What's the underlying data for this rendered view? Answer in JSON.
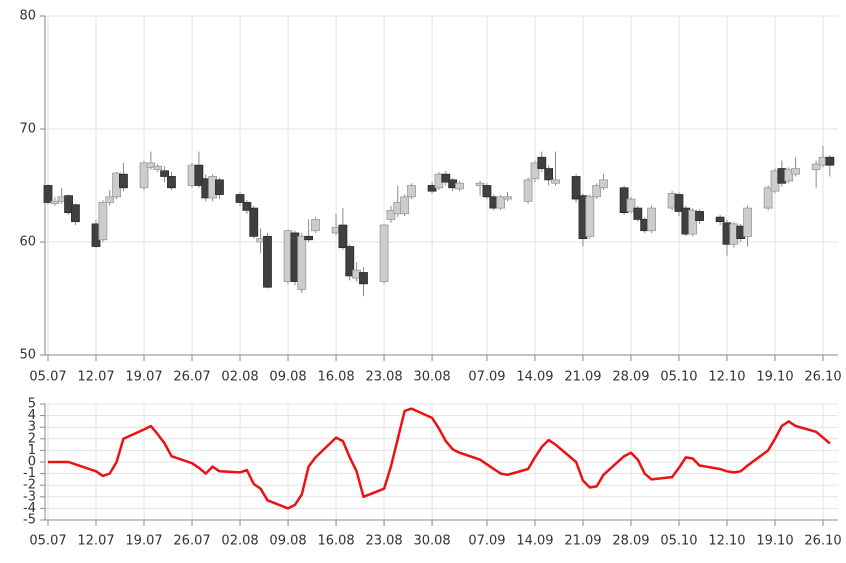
{
  "chart_data": [
    {
      "type": "candlestick",
      "x": [
        "05.07",
        "06.07",
        "07.07",
        "08.07",
        "09.07",
        "12.07",
        "13.07",
        "14.07",
        "15.07",
        "16.07",
        "19.07",
        "20.07",
        "21.07",
        "22.07",
        "23.07",
        "26.07",
        "27.07",
        "28.07",
        "29.07",
        "30.07",
        "02.08",
        "03.08",
        "04.08",
        "05.08",
        "06.08",
        "09.08",
        "10.08",
        "11.08",
        "12.08",
        "13.08",
        "16.08",
        "17.08",
        "18.08",
        "19.08",
        "20.08",
        "23.08",
        "24.08",
        "25.08",
        "26.08",
        "27.08",
        "30.08",
        "31.08",
        "01.09",
        "02.09",
        "03.09",
        "06.09",
        "07.09",
        "08.09",
        "09.09",
        "10.09",
        "13.09",
        "14.09",
        "15.09",
        "16.09",
        "17.09",
        "20.09",
        "21.09",
        "22.09",
        "23.09",
        "24.09",
        "27.09",
        "28.09",
        "29.09",
        "30.09",
        "01.10",
        "04.10",
        "05.10",
        "06.10",
        "07.10",
        "08.10",
        "11.10",
        "12.10",
        "13.10",
        "14.10",
        "15.10",
        "18.10",
        "19.10",
        "20.10",
        "21.10",
        "22.10",
        "25.10",
        "26.10",
        "27.10"
      ],
      "open": [
        65,
        63.4,
        63.6,
        64.1,
        63.3,
        61.6,
        60.2,
        63.5,
        64,
        66,
        64.8,
        66.6,
        66.4,
        66.3,
        65.8,
        65,
        66.8,
        65.6,
        63.9,
        65.5,
        64.2,
        63.5,
        63,
        60,
        60.5,
        56.5,
        60.8,
        55.8,
        60.5,
        61,
        60.8,
        61.5,
        59.6,
        56.8,
        57.3,
        56.5,
        62,
        62.5,
        62.5,
        64,
        65,
        64.8,
        66,
        65.5,
        64.7,
        65,
        65,
        64,
        63,
        63.8,
        63.6,
        65.6,
        67.5,
        66.5,
        65.2,
        65.8,
        64.1,
        60.5,
        64,
        64.8,
        64.8,
        62.7,
        63,
        62,
        61,
        63,
        64.2,
        63,
        60.7,
        62.7,
        62.2,
        61.7,
        59.8,
        61.4,
        60.5,
        63,
        64.5,
        66.5,
        65.4,
        66,
        66.4,
        66.8,
        67.5
      ],
      "high": [
        65.1,
        64,
        64.8,
        64.2,
        63.4,
        62,
        63.7,
        64.6,
        66.2,
        67,
        67.2,
        68,
        66.9,
        66.7,
        66.2,
        67,
        68,
        66,
        66,
        65.7,
        64.4,
        63.7,
        63.2,
        61.2,
        60.8,
        61.1,
        61,
        60.8,
        62,
        62.2,
        62.5,
        63,
        59.8,
        58.2,
        57.8,
        61.6,
        63.2,
        65,
        64.2,
        65.2,
        65.3,
        66.2,
        66.3,
        65.7,
        65.4,
        65.4,
        65.2,
        64.2,
        64.2,
        64.4,
        65.7,
        67.2,
        68,
        66.8,
        68,
        66,
        64.3,
        64.2,
        65.2,
        66,
        65,
        64,
        63.2,
        62.2,
        63.2,
        64.5,
        64.4,
        63.2,
        63,
        62.9,
        62.4,
        62,
        61.8,
        61.6,
        63.2,
        65,
        66.5,
        67.2,
        66.6,
        67.5,
        67.2,
        68.5,
        67.7
      ],
      "low": [
        63.3,
        63.2,
        63.4,
        62.4,
        61.5,
        59.5,
        60,
        63.2,
        63.8,
        64.5,
        64.6,
        66.4,
        66.2,
        65.3,
        64.6,
        64.8,
        64.8,
        63.6,
        63.6,
        63.8,
        63.2,
        62.5,
        60.3,
        59,
        55.9,
        56.3,
        56.2,
        55.5,
        60,
        60.8,
        60.6,
        59.3,
        56.6,
        56.5,
        55.2,
        56.3,
        61.7,
        62.2,
        62.3,
        63.8,
        64.3,
        64.6,
        65,
        64.5,
        64.5,
        64.1,
        63.8,
        62.8,
        62.8,
        63.6,
        63.4,
        65.3,
        66.2,
        65,
        65,
        63.5,
        59.6,
        60.3,
        63.8,
        64.6,
        62.4,
        62.5,
        61.8,
        60.8,
        60.8,
        62.8,
        62.3,
        60.5,
        60.5,
        61.6,
        61.5,
        58.8,
        59.5,
        60,
        59.6,
        62.8,
        64.3,
        64.9,
        65.2,
        65.8,
        64.8,
        66.6,
        65.8
      ],
      "close": [
        63.5,
        63.6,
        64,
        62.6,
        61.8,
        59.6,
        63.5,
        64,
        66.1,
        64.8,
        67,
        67,
        66.7,
        65.8,
        64.8,
        66.8,
        65,
        63.9,
        65.8,
        64.2,
        63.5,
        62.8,
        60.5,
        60.3,
        56,
        61,
        56.5,
        60.5,
        60.2,
        62,
        61.3,
        59.5,
        57,
        57.5,
        56.3,
        61.5,
        62.8,
        63.5,
        64,
        65,
        64.5,
        66,
        65.3,
        64.8,
        65.2,
        65.2,
        64,
        63,
        64,
        64,
        65.5,
        67,
        66.5,
        65.5,
        65.5,
        63.8,
        60.3,
        64,
        65,
        65.5,
        62.6,
        63.8,
        62,
        61,
        63,
        64.3,
        62.7,
        60.7,
        62.8,
        61.9,
        61.8,
        59.8,
        61.6,
        60.3,
        63,
        64.8,
        66.3,
        65.2,
        66.4,
        66.5,
        66.9,
        67.5,
        66.8
      ],
      "up_color": "#cccccc",
      "down_color": "#404040",
      "wick_color": "#8a8a8a",
      "ylim": [
        50,
        80
      ],
      "yticks": [
        50,
        60,
        70,
        80
      ],
      "xticks": [
        "05.07",
        "12.07",
        "19.07",
        "26.07",
        "02.08",
        "09.08",
        "16.08",
        "23.08",
        "30.08",
        "07.09",
        "14.09",
        "21.09",
        "28.09",
        "05.10",
        "12.10",
        "19.10",
        "26.10"
      ],
      "grid": true
    },
    {
      "type": "line",
      "x": [
        "05.07",
        "06.07",
        "07.07",
        "08.07",
        "09.07",
        "12.07",
        "13.07",
        "14.07",
        "15.07",
        "16.07",
        "19.07",
        "20.07",
        "21.07",
        "22.07",
        "23.07",
        "26.07",
        "27.07",
        "28.07",
        "29.07",
        "30.07",
        "02.08",
        "03.08",
        "04.08",
        "05.08",
        "06.08",
        "09.08",
        "10.08",
        "11.08",
        "12.08",
        "13.08",
        "16.08",
        "17.08",
        "18.08",
        "19.08",
        "20.08",
        "23.08",
        "24.08",
        "25.08",
        "26.08",
        "27.08",
        "30.08",
        "31.08",
        "01.09",
        "02.09",
        "03.09",
        "06.09",
        "07.09",
        "08.09",
        "09.09",
        "10.09",
        "13.09",
        "14.09",
        "15.09",
        "16.09",
        "17.09",
        "20.09",
        "21.09",
        "22.09",
        "23.09",
        "24.09",
        "27.09",
        "28.09",
        "29.09",
        "30.09",
        "01.10",
        "04.10",
        "05.10",
        "06.10",
        "07.10",
        "08.10",
        "11.10",
        "12.10",
        "13.10",
        "14.10",
        "15.10",
        "18.10",
        "19.10",
        "20.10",
        "21.10",
        "22.10",
        "25.10",
        "26.10",
        "27.10"
      ],
      "values": [
        0,
        0,
        0,
        0,
        -0.2,
        -0.8,
        -1.2,
        -1,
        0,
        2,
        2.8,
        3.1,
        2.4,
        1.6,
        0.5,
        -0.1,
        -0.5,
        -1,
        -0.4,
        -0.8,
        -0.9,
        -0.7,
        -1.9,
        -2.3,
        -3.3,
        -4,
        -3.7,
        -2.8,
        -0.4,
        0.4,
        2.1,
        1.8,
        0.4,
        -0.8,
        -3,
        -2.3,
        -0.4,
        2,
        4.4,
        4.6,
        3.8,
        2.9,
        1.8,
        1.1,
        0.8,
        0.2,
        -0.2,
        -0.6,
        -1,
        -1.1,
        -0.6,
        0.4,
        1.3,
        1.9,
        1.5,
        0,
        -1.6,
        -2.2,
        -2.1,
        -1.1,
        0.5,
        0.8,
        0.2,
        -1,
        -1.5,
        -1.3,
        -0.5,
        0.4,
        0.3,
        -0.3,
        -0.6,
        -0.8,
        -0.9,
        -0.8,
        -0.3,
        1,
        2,
        3.1,
        3.5,
        3.1,
        2.6,
        2.1,
        1.6
      ],
      "color": "#ee1111",
      "ylim": [
        -5,
        5
      ],
      "yticks": [
        -5,
        -4,
        -3,
        -2,
        -1,
        0,
        1,
        2,
        3,
        4,
        5
      ],
      "xticks": [
        "05.07",
        "12.07",
        "19.07",
        "26.07",
        "02.08",
        "09.08",
        "16.08",
        "23.08",
        "30.08",
        "07.09",
        "14.09",
        "21.09",
        "28.09",
        "05.10",
        "12.10",
        "19.10",
        "26.10"
      ],
      "grid": true
    }
  ]
}
